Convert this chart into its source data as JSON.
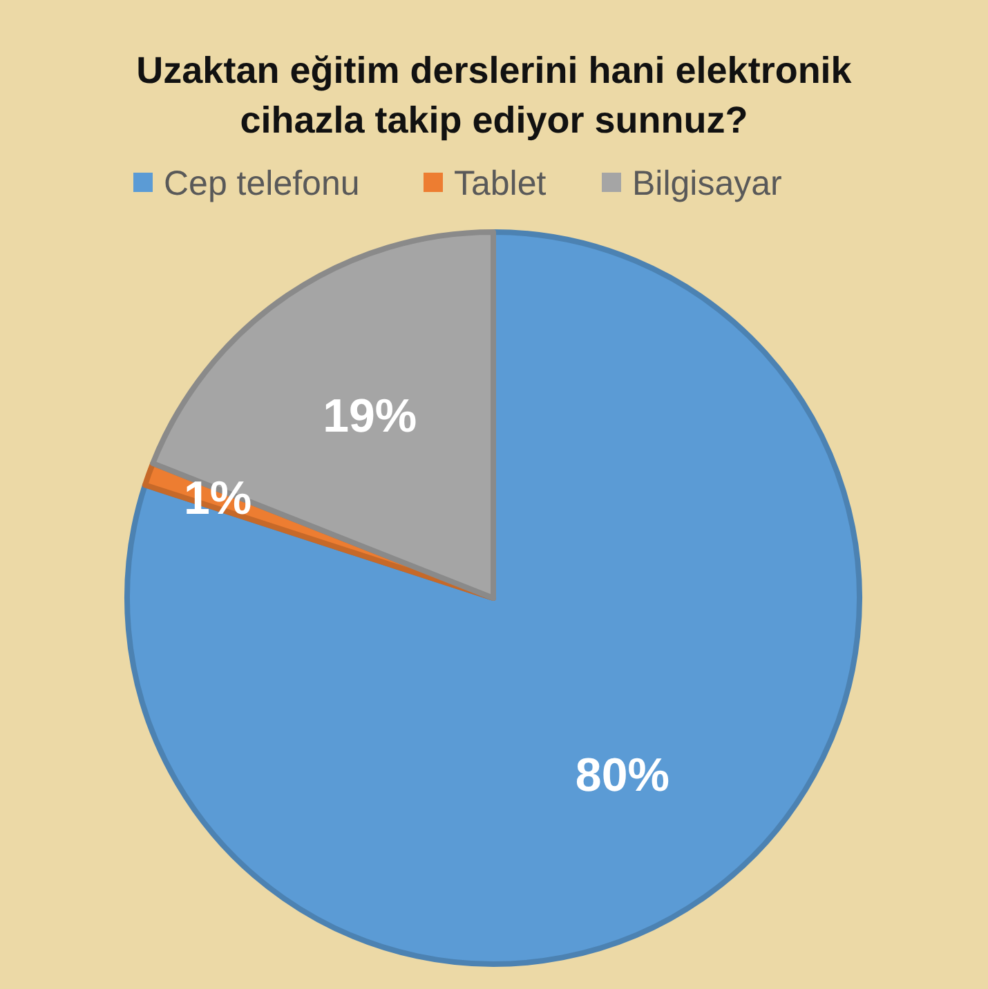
{
  "chart_data": {
    "type": "pie",
    "title": "Uzaktan eğitim derslerini hani elektronik cihazla takip ediyor sunnuz?",
    "categories": [
      "Cep telefonu",
      "Tablet",
      "Bilgisayar"
    ],
    "values": [
      80,
      1,
      19
    ],
    "colors": [
      "#5b9bd5",
      "#ed7d31",
      "#a5a5a5"
    ],
    "value_labels": [
      "80%",
      "1%",
      "19%"
    ],
    "legend": "top"
  }
}
